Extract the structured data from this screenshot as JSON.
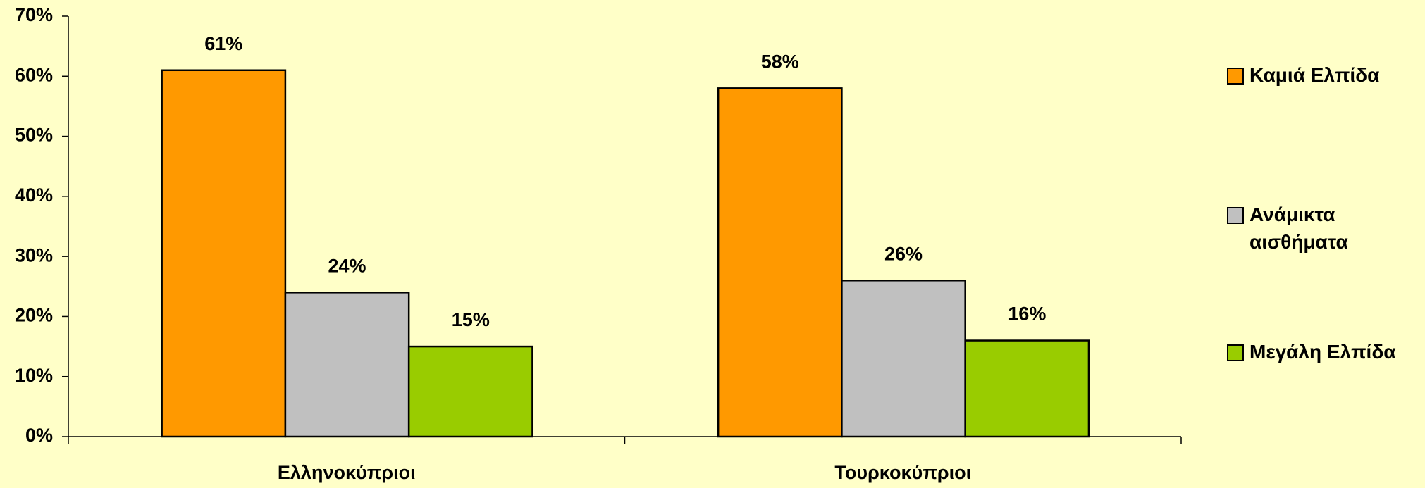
{
  "chart_data": {
    "type": "bar",
    "categories": [
      "Ελληνοκύπριοι",
      "Τουρκοκύπριοι"
    ],
    "series": [
      {
        "name": "Καμιά Ελπίδα",
        "color": "#ff9900",
        "values": [
          61,
          58
        ],
        "value_labels": [
          "61%",
          "58%"
        ]
      },
      {
        "name": "Ανάμικτα αισθήματα",
        "color": "#c0c0c0",
        "values": [
          24,
          26
        ],
        "value_labels": [
          "24%",
          "26%"
        ]
      },
      {
        "name": "Μεγάλη Ελπίδα",
        "color": "#99cc00",
        "values": [
          15,
          16
        ],
        "value_labels": [
          "15%",
          "16%"
        ]
      }
    ],
    "ylim": [
      0,
      70
    ],
    "yticks": [
      {
        "value": 0,
        "label": "0%"
      },
      {
        "value": 10,
        "label": "10%"
      },
      {
        "value": 20,
        "label": "20%"
      },
      {
        "value": 30,
        "label": "30%"
      },
      {
        "value": 40,
        "label": "40%"
      },
      {
        "value": 50,
        "label": "50%"
      },
      {
        "value": 60,
        "label": "60%"
      },
      {
        "value": 70,
        "label": "70%"
      }
    ],
    "legend": "right"
  }
}
